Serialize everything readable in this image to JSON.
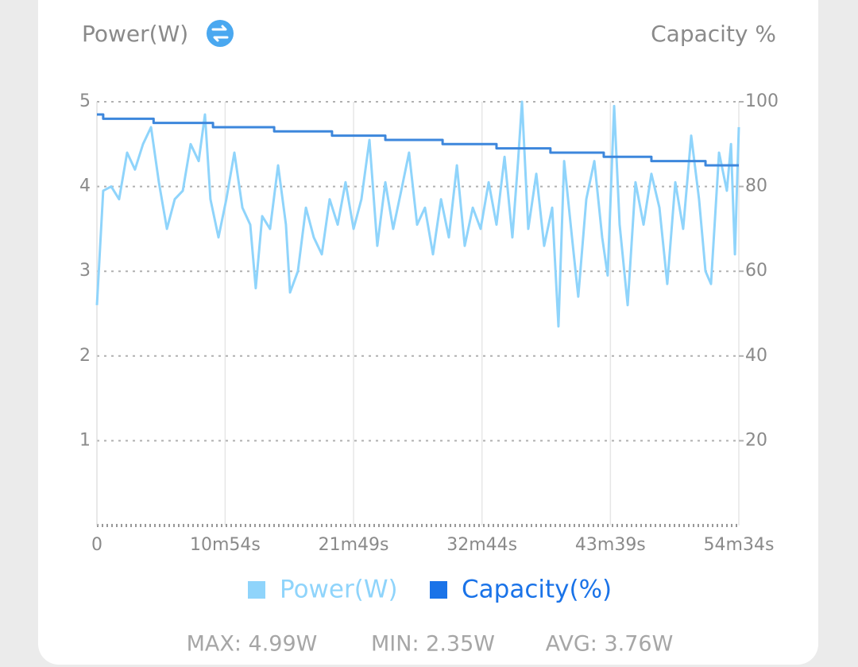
{
  "chart_data": {
    "type": "line",
    "y_label": "Power(W)",
    "y2_label": "Capacity %",
    "xlim": [
      0,
      3274
    ],
    "xticks": [
      0,
      {
        "value": 654,
        "label": "10m54s"
      },
      {
        "value": 1309,
        "label": "21m49s"
      },
      {
        "value": 1964,
        "label": "32m44s"
      },
      {
        "value": 2619,
        "label": "43m39s"
      },
      {
        "value": 3274,
        "label": "54m34s"
      }
    ],
    "ylim": [
      0,
      5
    ],
    "yticks": [
      1,
      2,
      3,
      4,
      5
    ],
    "y2lim": [
      0,
      100
    ],
    "y2ticks": [
      20,
      40,
      60,
      80,
      100
    ],
    "grid": true,
    "series": [
      {
        "name": "Power(W)",
        "color": "#8fd4fb",
        "axis": "y",
        "step": false,
        "x": [
          0,
          32,
          73,
          113,
          154,
          194,
          235,
          276,
          316,
          357,
          397,
          438,
          478,
          519,
          551,
          579,
          620,
          660,
          701,
          742,
          782,
          810,
          843,
          883,
          924,
          964,
          985,
          1025,
          1066,
          1106,
          1147,
          1187,
          1228,
          1268,
          1309,
          1349,
          1390,
          1430,
          1471,
          1511,
          1552,
          1592,
          1633,
          1673,
          1714,
          1755,
          1795,
          1836,
          1876,
          1917,
          1957,
          1998,
          2038,
          2079,
          2119,
          2148,
          2168,
          2200,
          2241,
          2281,
          2322,
          2354,
          2383,
          2423,
          2455,
          2496,
          2537,
          2577,
          2605,
          2638,
          2666,
          2707,
          2747,
          2788,
          2828,
          2869,
          2909,
          2950,
          2990,
          3031,
          3071,
          3104,
          3132,
          3173,
          3213,
          3234,
          3254,
          3274
        ],
        "values": [
          2.6,
          3.95,
          4.0,
          3.85,
          4.4,
          4.2,
          4.5,
          4.7,
          4.05,
          3.5,
          3.85,
          3.95,
          4.5,
          4.3,
          4.85,
          3.85,
          3.4,
          3.85,
          4.4,
          3.75,
          3.55,
          2.8,
          3.65,
          3.5,
          4.25,
          3.55,
          2.75,
          3.0,
          3.75,
          3.4,
          3.2,
          3.85,
          3.55,
          4.05,
          3.5,
          3.85,
          4.55,
          3.3,
          4.05,
          3.5,
          3.95,
          4.4,
          3.55,
          3.75,
          3.2,
          3.85,
          3.4,
          4.25,
          3.3,
          3.75,
          3.5,
          4.05,
          3.55,
          4.35,
          3.4,
          4.3,
          5.0,
          3.5,
          4.15,
          3.3,
          3.75,
          2.35,
          4.3,
          3.4,
          2.7,
          3.85,
          4.3,
          3.4,
          2.95,
          4.95,
          3.55,
          2.6,
          4.05,
          3.55,
          4.15,
          3.75,
          2.85,
          4.05,
          3.5,
          4.6,
          3.85,
          3.0,
          2.85,
          4.4,
          3.95,
          4.5,
          3.2,
          4.7
        ]
      },
      {
        "name": "Capacity(%)",
        "color": "#3d87dc",
        "axis": "y2",
        "step": true,
        "x": [
          0,
          32,
          289,
          592,
          904,
          1199,
          1471,
          1763,
          2038,
          2313,
          2585,
          2828,
          3104,
          3274
        ],
        "values": [
          97,
          96,
          95,
          94,
          93,
          92,
          91,
          90,
          89,
          88,
          87,
          86,
          85,
          85
        ]
      }
    ],
    "legend_colors": [
      "#8fd4fb",
      "#1a73e8"
    ],
    "stats": [
      "MAX: 4.99W",
      "MIN: 2.35W",
      "AVG: 3.76W"
    ]
  }
}
